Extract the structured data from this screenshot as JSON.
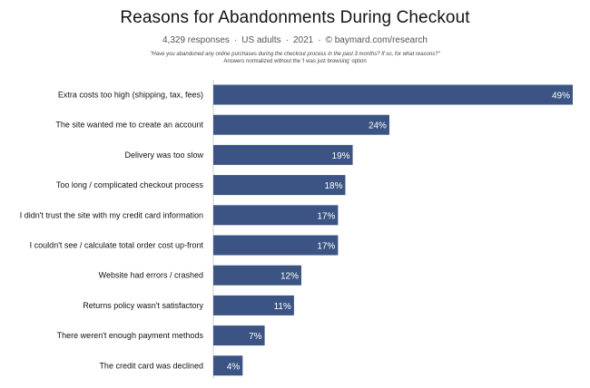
{
  "header": {
    "title": "Reasons for Abandonments During Checkout",
    "responses": "4,329 responses",
    "audience": "US adults",
    "year": "2021",
    "source": "© baymard.com/research",
    "separator": "·",
    "question": "\"Have you abandoned any online purchases during the checkout process in the past 3 months? If so, for what reasons?\"",
    "note": "Answers normalized without the 'I was just browsing' option"
  },
  "chart_data": {
    "type": "bar",
    "orientation": "horizontal",
    "title": "Reasons for Abandonments During Checkout",
    "categories": [
      "Extra costs too high (shipping, tax, fees)",
      "The site wanted me to create an account",
      "Delivery was too slow",
      "Too long / complicated checkout process",
      "I didn't trust the site with my credit card information",
      "I couldn't see / calculate total order cost up-front",
      "Website had errors / crashed",
      "Returns policy wasn't satisfactory",
      "There weren't enough payment methods",
      "The credit card was declined"
    ],
    "values": [
      49,
      24,
      19,
      18,
      17,
      17,
      12,
      11,
      7,
      4
    ],
    "value_labels": [
      "49%",
      "24%",
      "19%",
      "18%",
      "17%",
      "17%",
      "12%",
      "11%",
      "7%",
      "4%"
    ],
    "unit": "%",
    "xlim": [
      0,
      49
    ],
    "grid": false,
    "legend": "none",
    "bar_color": "#3b5484"
  }
}
